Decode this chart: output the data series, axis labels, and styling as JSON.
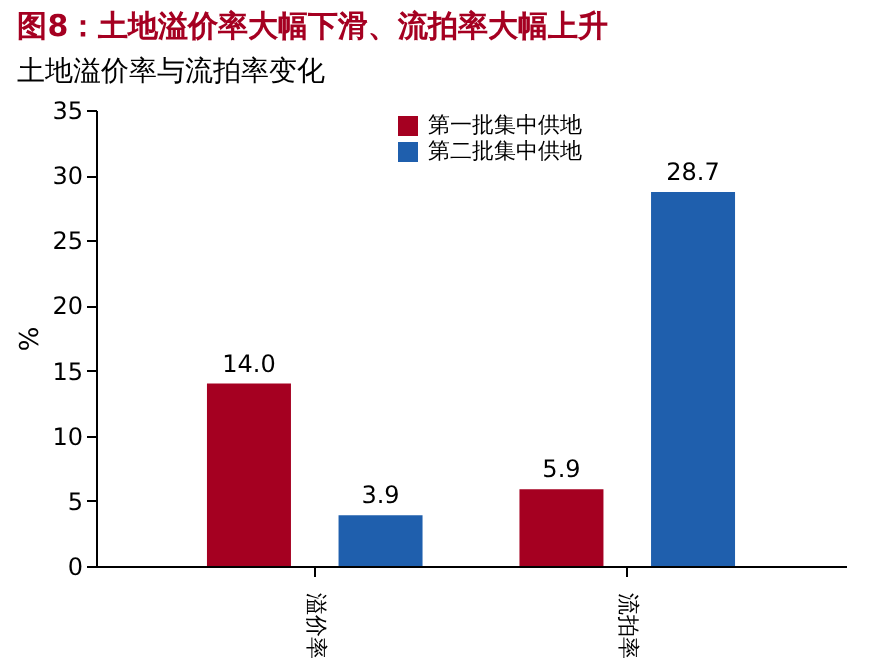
{
  "chart_data": {
    "type": "bar",
    "title": "图8：土地溢价率大幅下滑、流拍率大幅上升",
    "subtitle": "土地溢价率与流拍率变化",
    "ylabel": "%",
    "categories": [
      "溢价率",
      "流拍率"
    ],
    "series": [
      {
        "name": "第一批集中供地",
        "color": "#a50021",
        "values": [
          14.0,
          5.9
        ],
        "value_labels": [
          "14.0",
          "5.9"
        ]
      },
      {
        "name": "第二批集中供地",
        "color": "#1f5fad",
        "values": [
          3.9,
          28.7
        ],
        "value_labels": [
          "3.9",
          "28.7"
        ]
      }
    ],
    "ylim": [
      0,
      35
    ],
    "yticks": [
      0,
      5,
      10,
      15,
      20,
      25,
      30,
      35
    ],
    "data_labels": true,
    "grid": false,
    "legend": "top"
  }
}
